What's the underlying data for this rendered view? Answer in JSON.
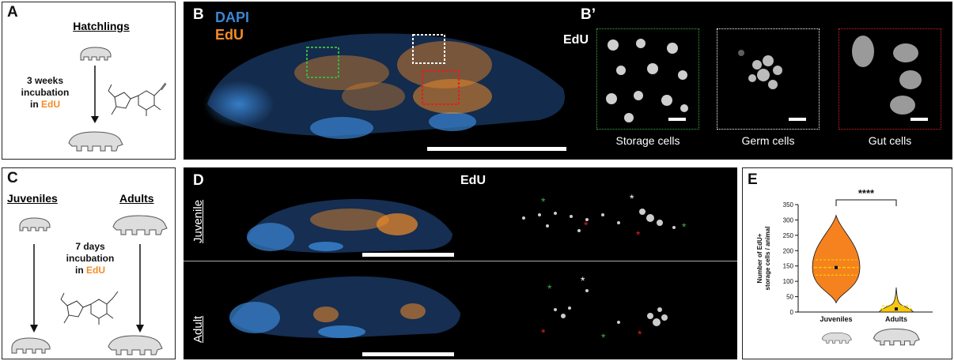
{
  "panels": {
    "A": {
      "letter": "A",
      "title": "Hatchlings",
      "duration_line1": "3 weeks",
      "duration_line2": "incubation",
      "duration_line3_prefix": "in",
      "reagent": "EdU"
    },
    "B": {
      "letter": "B",
      "legend_dapi": "DAPI",
      "legend_edu": "EdU"
    },
    "B_prime": {
      "letter": "B’",
      "channel": "EdU",
      "insets": [
        {
          "label": "Storage cells",
          "border_color": "#3cb043"
        },
        {
          "label": "Germ cells",
          "border_color": "#ffffff"
        },
        {
          "label": "Gut cells",
          "border_color": "#e02020"
        }
      ]
    },
    "C": {
      "letter": "C",
      "title_left": "Juveniles",
      "title_right": "Adults",
      "duration_line1": "7 days",
      "duration_line2": "incubation",
      "duration_line3_prefix": "in",
      "reagent": "EdU"
    },
    "D": {
      "letter": "D",
      "channel": "EdU",
      "row_top": "Juvenile",
      "row_bottom": "Adult"
    },
    "E": {
      "letter": "E",
      "significance": "****"
    }
  },
  "colors": {
    "dapi": "#3a86d4",
    "edu": "#f28c28",
    "marker_green": "#3cb043",
    "marker_red": "#e02020",
    "violin_juvenile": "#f5821f",
    "violin_adult": "#f5c518",
    "box_line": "#f5d000"
  },
  "chart_data": {
    "type": "violin",
    "title": "",
    "ylabel": "Number of EdU+ storage cells / animal",
    "xlabel": "",
    "categories": [
      "Juveniles",
      "Adults"
    ],
    "ylim": [
      0,
      350
    ],
    "yticks": [
      0,
      50,
      100,
      150,
      200,
      250,
      300,
      350
    ],
    "series": [
      {
        "category": "Juveniles",
        "median": 145,
        "q1": 120,
        "q3": 170,
        "min": 30,
        "max": 315
      },
      {
        "category": "Adults",
        "median": 10,
        "q1": 3,
        "q3": 20,
        "min": 0,
        "max": 80
      }
    ],
    "annotation": "****",
    "grid": false
  }
}
